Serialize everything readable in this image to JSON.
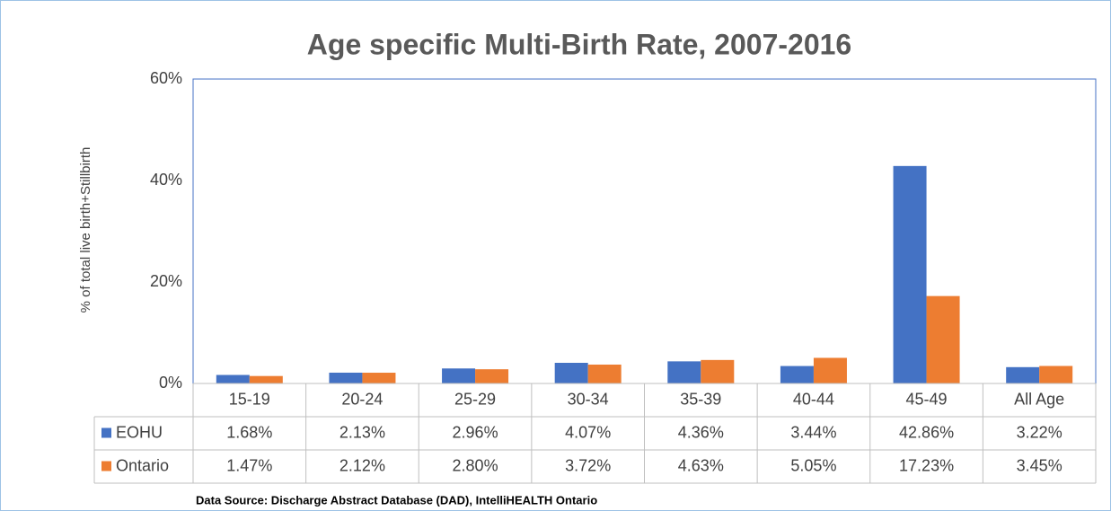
{
  "chart_data": {
    "type": "bar",
    "title": "Age specific Multi-Birth Rate, 2007-2016",
    "y_label": "% of total live birth+Stillbirth",
    "categories": [
      "15-19",
      "20-24",
      "25-29",
      "30-34",
      "35-39",
      "40-44",
      "45-49",
      "All Age"
    ],
    "series": [
      {
        "name": "EOHU",
        "color": "#4472c4",
        "values": [
          1.68,
          2.13,
          2.96,
          4.07,
          4.36,
          3.44,
          42.86,
          3.22
        ],
        "value_labels": [
          "1.68%",
          "2.13%",
          "2.96%",
          "4.07%",
          "4.36%",
          "3.44%",
          "42.86%",
          "3.22%"
        ]
      },
      {
        "name": "Ontario",
        "color": "#ed7d31",
        "values": [
          1.47,
          2.12,
          2.8,
          3.72,
          4.63,
          5.05,
          17.23,
          3.45
        ],
        "value_labels": [
          "1.47%",
          "2.12%",
          "2.80%",
          "3.72%",
          "4.63%",
          "5.05%",
          "17.23%",
          "3.45%"
        ]
      }
    ],
    "ylim": [
      0,
      60
    ],
    "yticks": [
      {
        "value": 0,
        "label": "0%"
      },
      {
        "value": 20,
        "label": "20%"
      },
      {
        "value": 40,
        "label": "40%"
      },
      {
        "value": 60,
        "label": "60%"
      }
    ],
    "grid": false,
    "source": "Data Source: Discharge Abstract Database (DAD), IntelliHEALTH Ontario"
  }
}
